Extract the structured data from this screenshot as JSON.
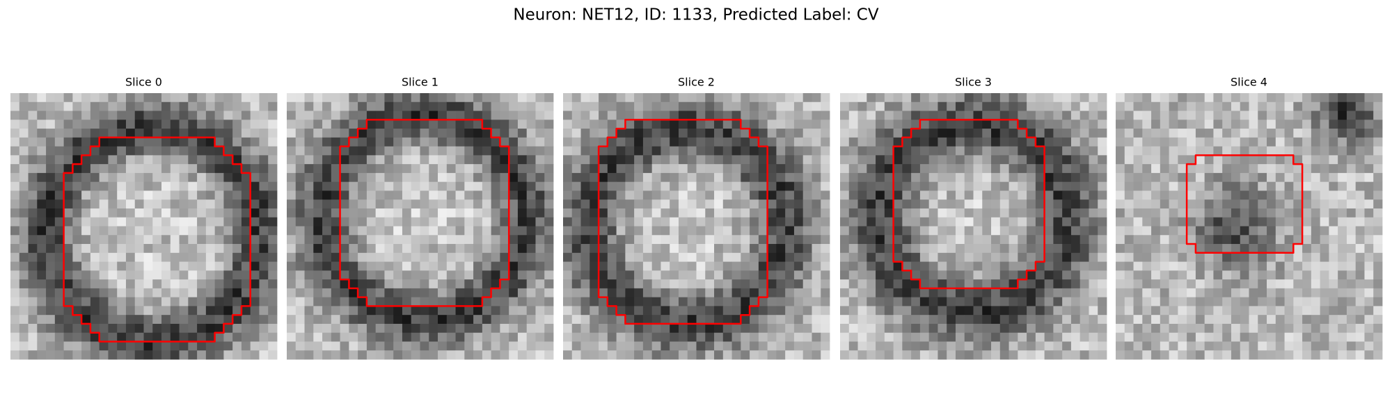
{
  "title": "Neuron: NET12, ID: 1133, Predicted Label: CV",
  "panels": [
    {
      "title": "Slice 0"
    },
    {
      "title": "Slice 1"
    },
    {
      "title": "Slice 2"
    },
    {
      "title": "Slice 3"
    },
    {
      "title": "Slice 4"
    }
  ]
}
